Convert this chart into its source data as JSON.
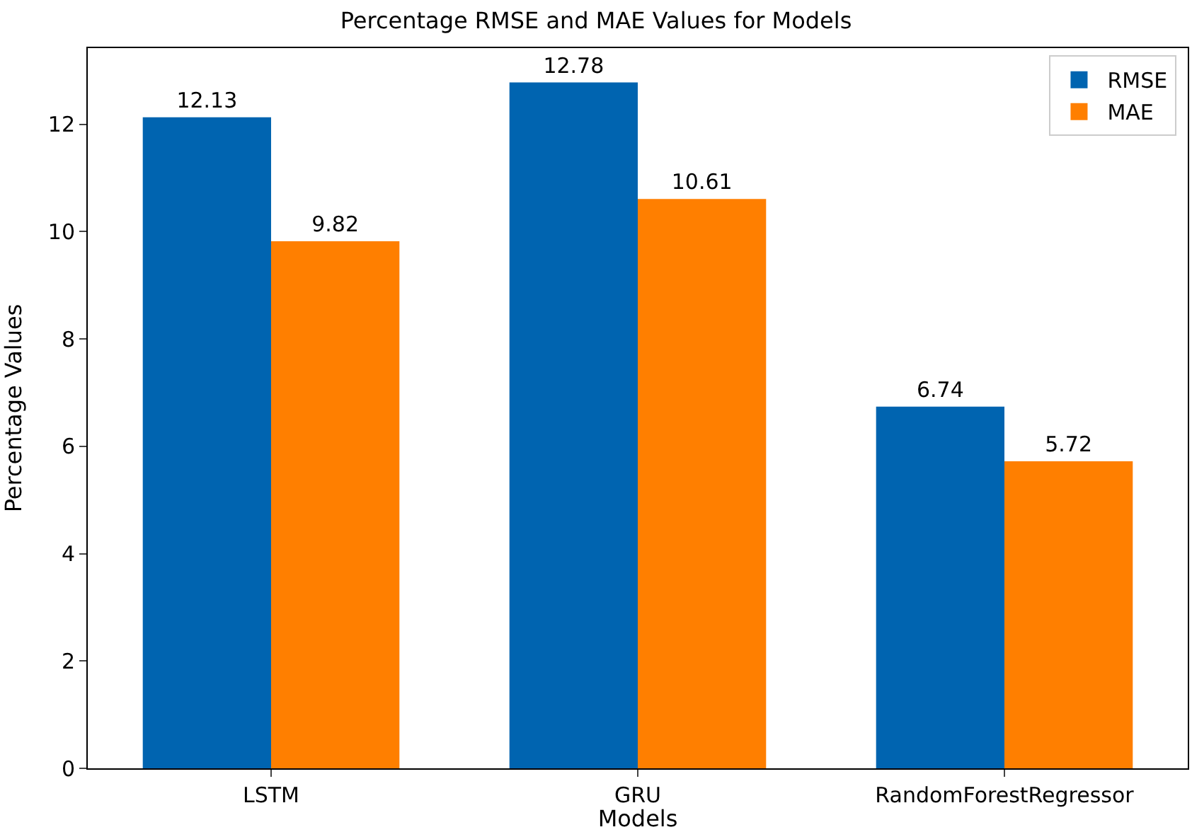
{
  "chart_data": {
    "type": "bar",
    "title": "Percentage RMSE and MAE Values for Models",
    "xlabel": "Models",
    "ylabel": "Percentage Values",
    "categories": [
      "LSTM",
      "GRU",
      "RandomForestRegressor"
    ],
    "series": [
      {
        "name": "RMSE",
        "color": "#0064b0",
        "values": [
          12.13,
          12.78,
          6.74
        ]
      },
      {
        "name": "MAE",
        "color": "#ff7f00",
        "values": [
          9.82,
          10.61,
          5.72
        ]
      }
    ],
    "ylim": [
      0,
      13.42
    ],
    "yticks": [
      0,
      2,
      4,
      6,
      8,
      10,
      12
    ],
    "data_labels": true,
    "legend": "top right"
  }
}
